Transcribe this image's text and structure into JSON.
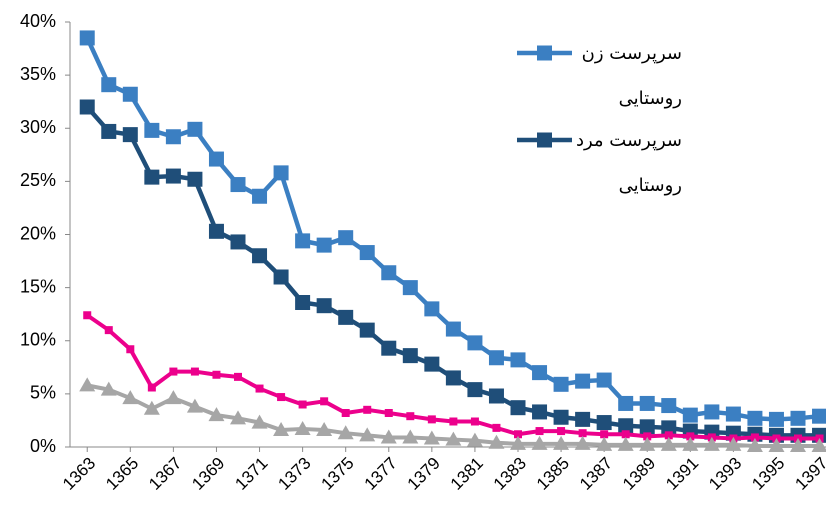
{
  "chart_data": {
    "type": "line",
    "x": [
      1363,
      1364,
      1365,
      1366,
      1367,
      1368,
      1369,
      1370,
      1371,
      1372,
      1373,
      1374,
      1375,
      1376,
      1377,
      1378,
      1379,
      1380,
      1381,
      1382,
      1383,
      1384,
      1385,
      1386,
      1387,
      1388,
      1389,
      1390,
      1391,
      1392,
      1393,
      1394,
      1395,
      1396,
      1397
    ],
    "xlim": [
      1362.2,
      1397.3
    ],
    "xticks": [
      1363,
      1365,
      1367,
      1369,
      1371,
      1373,
      1375,
      1377,
      1379,
      1381,
      1383,
      1385,
      1387,
      1389,
      1391,
      1393,
      1395,
      1397
    ],
    "ylim": [
      0,
      40
    ],
    "yticks": [
      {
        "value": 0,
        "label": "0%"
      },
      {
        "value": 5,
        "label": "5%"
      },
      {
        "value": 10,
        "label": "10%"
      },
      {
        "value": 15,
        "label": "15%"
      },
      {
        "value": 20,
        "label": "20%"
      },
      {
        "value": 25,
        "label": "25%"
      },
      {
        "value": 30,
        "label": "30%"
      },
      {
        "value": 35,
        "label": "35%"
      },
      {
        "value": 40,
        "label": "40%"
      }
    ],
    "grid": false,
    "series": [
      {
        "name": "سرپرست زن روستایی",
        "color": "#3b7fc2",
        "marker": "square",
        "values": [
          38.5,
          34.1,
          33.2,
          29.8,
          29.2,
          29.9,
          27.1,
          24.7,
          23.6,
          25.8,
          19.4,
          19.0,
          19.7,
          18.3,
          16.4,
          15.0,
          13.0,
          11.1,
          9.8,
          8.4,
          8.2,
          7.0,
          5.9,
          6.2,
          6.3,
          4.1,
          4.1,
          3.9,
          3.0,
          3.3,
          3.1,
          2.7,
          2.6,
          2.7,
          2.9
        ]
      },
      {
        "name": "سرپرست مرد روستایی",
        "color": "#1f4e79",
        "marker": "square",
        "values": [
          32.0,
          29.7,
          29.4,
          25.4,
          25.5,
          25.2,
          20.3,
          19.3,
          18.0,
          16.0,
          13.6,
          13.3,
          12.2,
          11.0,
          9.3,
          8.6,
          7.8,
          6.5,
          5.4,
          4.8,
          3.7,
          3.3,
          2.8,
          2.6,
          2.3,
          2.0,
          1.9,
          1.8,
          1.5,
          1.4,
          1.3,
          1.2,
          1.1,
          1.1,
          1.1
        ]
      },
      {
        "color": "#ec008c",
        "marker": "small-square",
        "values": [
          12.4,
          11.0,
          9.2,
          5.6,
          7.1,
          7.1,
          6.8,
          6.6,
          5.5,
          4.7,
          4.0,
          4.3,
          3.2,
          3.5,
          3.2,
          2.9,
          2.6,
          2.4,
          2.4,
          1.8,
          1.2,
          1.5,
          1.5,
          1.3,
          1.2,
          1.2,
          1.0,
          1.1,
          1.0,
          0.9,
          0.8,
          0.9,
          0.8,
          0.8,
          0.8
        ]
      },
      {
        "color": "#a6a6a6",
        "marker": "triangle",
        "values": [
          5.8,
          5.4,
          4.6,
          3.6,
          4.6,
          3.8,
          3.0,
          2.7,
          2.3,
          1.6,
          1.7,
          1.6,
          1.3,
          1.1,
          0.9,
          0.9,
          0.8,
          0.7,
          0.6,
          0.4,
          0.3,
          0.3,
          0.3,
          0.3,
          0.2,
          0.2,
          0.2,
          0.2,
          0.2,
          0.2,
          0.2,
          0.1,
          0.1,
          0.1,
          0.1
        ]
      }
    ]
  }
}
